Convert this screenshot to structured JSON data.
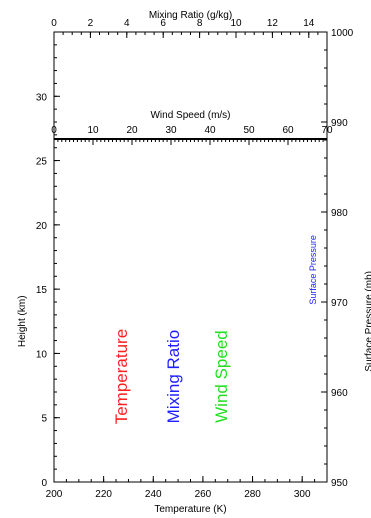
{
  "chart_data": {
    "type": "line",
    "x_bottom": {
      "label": "Temperature (K)",
      "range": [
        200,
        310
      ],
      "ticks": [
        200,
        220,
        240,
        260,
        280,
        300
      ]
    },
    "x_top_mixing": {
      "label": "Mixing Ratio (g/kg)",
      "range": [
        0,
        15
      ],
      "ticks": [
        0,
        2,
        4,
        6,
        8,
        10,
        12,
        14
      ]
    },
    "x_top_wind": {
      "label": "Wind Speed (m/s)",
      "range": [
        0,
        70
      ],
      "ticks": [
        0,
        10,
        20,
        30,
        40,
        50,
        60,
        70
      ]
    },
    "y_left": {
      "label": "Height (km)",
      "range": [
        0,
        35
      ],
      "ticks": [
        0,
        5,
        10,
        15,
        20,
        25,
        30
      ]
    },
    "y_right": {
      "label": "Surface Pressure (mb)",
      "range": [
        950,
        1000
      ],
      "ticks": [
        950,
        960,
        970,
        980,
        990,
        1000
      ]
    },
    "series": [
      {
        "name": "Temperature",
        "color": "#ff2020",
        "x": [],
        "y": []
      },
      {
        "name": "Mixing Ratio",
        "color": "#2020ff",
        "x": [],
        "y": []
      },
      {
        "name": "Wind Speed",
        "color": "#20e020",
        "x": [],
        "y": []
      }
    ],
    "annotations": [
      {
        "text": "Surface Pressure",
        "color": "#2020ff"
      }
    ],
    "grid": false
  }
}
